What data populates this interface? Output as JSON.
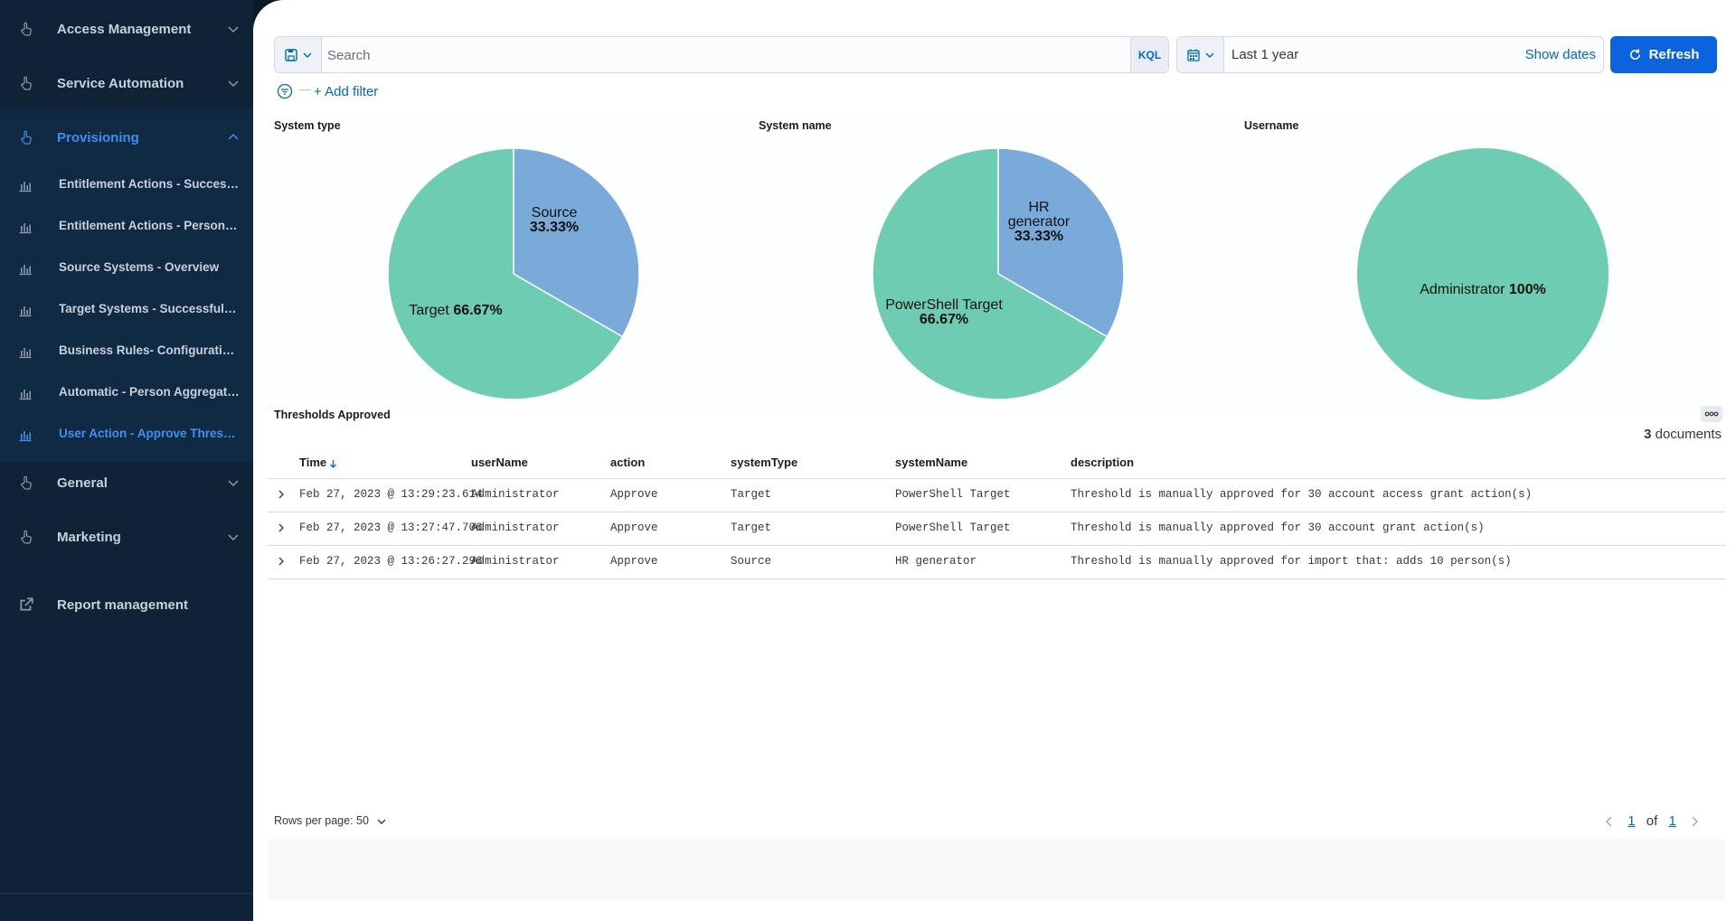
{
  "sidebar": {
    "sections": [
      {
        "label": "Access Management",
        "icon": "hand-pointer-icon",
        "chevron": "down"
      },
      {
        "label": "Service Automation",
        "icon": "hand-pointer-icon",
        "chevron": "down"
      },
      {
        "label": "Provisioning",
        "icon": "hand-pointer-icon",
        "chevron": "up",
        "active": true
      },
      {
        "label": "General",
        "icon": "hand-pointer-icon",
        "chevron": "down"
      },
      {
        "label": "Marketing",
        "icon": "hand-pointer-icon",
        "chevron": "down"
      }
    ],
    "provisioning_items": [
      {
        "label": "Entitlement Actions - Succesfu..."
      },
      {
        "label": "Entitlement Actions - Person O..."
      },
      {
        "label": "Source Systems - Overview"
      },
      {
        "label": "Target Systems - Successful O..."
      },
      {
        "label": "Business Rules- Configuration ..."
      },
      {
        "label": "Automatic - Person Aggregatio..."
      },
      {
        "label": "User Action - Approve Threshol...",
        "active": true
      }
    ],
    "report_management": "Report management"
  },
  "query_bar": {
    "search_placeholder": "Search",
    "language": "KQL"
  },
  "date_picker": {
    "range": "Last 1 year",
    "show_dates": "Show dates"
  },
  "refresh_label": "Refresh",
  "add_filter_label": "+ Add filter",
  "colors": {
    "accent": "#006bb8",
    "refresh_bg": "#0b64dd",
    "pie_green": "#6dccb1",
    "pie_blue": "#79aad9",
    "sidebar_bg": "#0f2236"
  },
  "panels": [
    {
      "title": "System type",
      "slices": [
        {
          "label": "Source",
          "pct": "33.33%",
          "value": 33.33,
          "color": "#79aad9"
        },
        {
          "label": "Target",
          "pct": "66.67%",
          "value": 66.67,
          "color": "#6dccb1"
        }
      ]
    },
    {
      "title": "System name",
      "slices": [
        {
          "label": "HR generator",
          "pct": "33.33%",
          "value": 33.33,
          "color": "#79aad9"
        },
        {
          "label": "PowerShell Target",
          "pct": "66.67%",
          "value": 66.67,
          "color": "#6dccb1"
        }
      ]
    },
    {
      "title": "Username",
      "slices": [
        {
          "label": "Administrator",
          "pct": "100%",
          "value": 100,
          "color": "#6dccb1"
        }
      ]
    }
  ],
  "chart_data": [
    {
      "type": "pie",
      "title": "System type",
      "categories": [
        "Source",
        "Target"
      ],
      "values": [
        33.33,
        66.67
      ]
    },
    {
      "type": "pie",
      "title": "System name",
      "categories": [
        "HR generator",
        "PowerShell Target"
      ],
      "values": [
        33.33,
        66.67
      ]
    },
    {
      "type": "pie",
      "title": "Username",
      "categories": [
        "Administrator"
      ],
      "values": [
        100
      ]
    }
  ],
  "table": {
    "title": "Thresholds Approved",
    "doc_count": "3",
    "doc_suffix": " documents",
    "columns": [
      "Time",
      "userName",
      "action",
      "systemType",
      "systemName",
      "description"
    ],
    "rows": [
      [
        "Feb 27, 2023 @ 13:29:23.614",
        "Administrator",
        "Approve",
        "Target",
        "PowerShell Target",
        "Threshold is manually approved for 30 account access grant action(s)"
      ],
      [
        "Feb 27, 2023 @ 13:27:47.706",
        "Administrator",
        "Approve",
        "Target",
        "PowerShell Target",
        "Threshold is manually approved for 30 account grant action(s)"
      ],
      [
        "Feb 27, 2023 @ 13:26:27.296",
        "Administrator",
        "Approve",
        "Source",
        "HR generator",
        "Threshold is manually approved for import that: adds 10 person(s)"
      ]
    ],
    "rows_per_page": "Rows per page: 50",
    "page_current": "1",
    "page_of": "of",
    "page_total": "1"
  }
}
